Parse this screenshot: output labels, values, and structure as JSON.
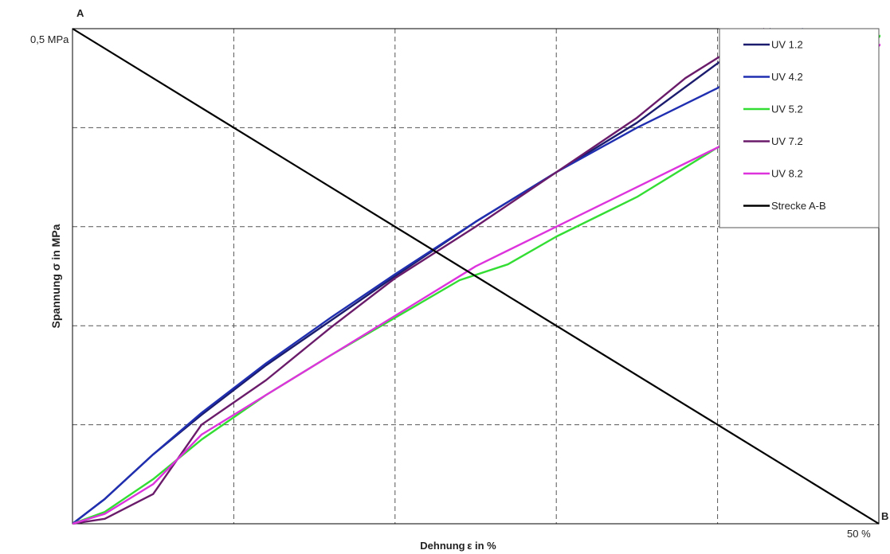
{
  "chart_data": {
    "type": "line",
    "title": "",
    "xlabel": "Dehnung ε in %",
    "ylabel": "Spannung σ in MPa",
    "xlim": [
      0,
      50
    ],
    "ylim": [
      0,
      0.5
    ],
    "tick_labels": {
      "y_top": "0,5 MPa",
      "x_right": "50 %"
    },
    "point_labels": {
      "a": "A",
      "b": "B"
    },
    "grid": true,
    "legend_position": "top-right",
    "series": [
      {
        "name": "UV 1.2",
        "color": "#1c1c6e",
        "x": [
          0,
          2,
          5,
          8,
          12,
          16,
          20,
          25,
          30,
          35,
          40,
          43.3
        ],
        "y": [
          0,
          0.025,
          0.07,
          0.11,
          0.16,
          0.205,
          0.25,
          0.305,
          0.355,
          0.405,
          0.465,
          0.5
        ]
      },
      {
        "name": "UV 4.2",
        "color": "#1f2fb0",
        "x": [
          0,
          2,
          5,
          8,
          12,
          16,
          20,
          25,
          30,
          35,
          40,
          45.3
        ],
        "y": [
          0,
          0.025,
          0.07,
          0.112,
          0.162,
          0.208,
          0.252,
          0.305,
          0.355,
          0.4,
          0.44,
          0.5
        ]
      },
      {
        "name": "UV 5.2",
        "color": "#33dd33",
        "x": [
          0,
          2,
          5,
          8,
          12,
          16,
          20,
          24,
          27,
          30,
          35,
          40,
          45,
          50.6
        ],
        "y": [
          0,
          0.012,
          0.045,
          0.085,
          0.13,
          0.17,
          0.208,
          0.246,
          0.262,
          0.29,
          0.33,
          0.38,
          0.42,
          0.5
        ]
      },
      {
        "name": "UV 7.2",
        "color": "#6a1c6a",
        "x": [
          0,
          2,
          5,
          8,
          12,
          16,
          20,
          25,
          30,
          35,
          38,
          42.9
        ],
        "y": [
          0,
          0.005,
          0.03,
          0.1,
          0.145,
          0.198,
          0.248,
          0.3,
          0.355,
          0.41,
          0.45,
          0.5
        ]
      },
      {
        "name": "UV 8.2",
        "color": "#dd33dd",
        "x": [
          0,
          2,
          5,
          8,
          12,
          16,
          20,
          25,
          30,
          35,
          40,
          45,
          51.5
        ],
        "y": [
          0,
          0.01,
          0.04,
          0.09,
          0.13,
          0.17,
          0.21,
          0.26,
          0.3,
          0.34,
          0.38,
          0.425,
          0.5
        ]
      },
      {
        "name": "Strecke A-B",
        "color": "#000000",
        "x": [
          0,
          50
        ],
        "y": [
          0.5,
          0
        ]
      }
    ]
  }
}
